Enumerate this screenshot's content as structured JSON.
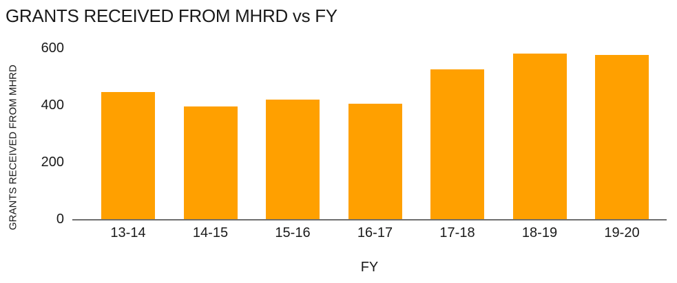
{
  "chart_data": {
    "type": "bar",
    "title": "GRANTS RECEIVED FROM MHRD vs FY",
    "xlabel": "FY",
    "ylabel": "GRANTS RECEIVED FROM MHRD",
    "categories": [
      "13-14",
      "14-15",
      "15-16",
      "16-17",
      "17-18",
      "18-19",
      "19-20"
    ],
    "values": [
      445,
      395,
      420,
      405,
      525,
      580,
      575
    ],
    "yticks": [
      0,
      200,
      400,
      600
    ],
    "ylim": [
      0,
      600
    ],
    "grid": false,
    "legend": false,
    "colors": {
      "bar": "#FFA000",
      "axis_line": "#6E6E6E",
      "text": "#1A1A1A"
    }
  }
}
